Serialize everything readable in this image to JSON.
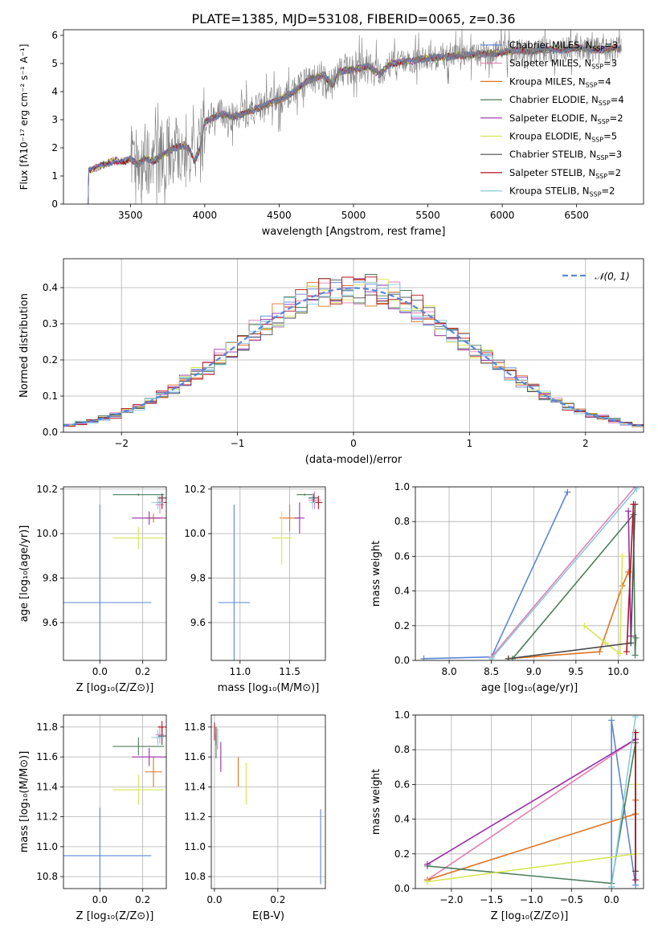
{
  "figure_title": "PLATE=1385, MJD=53108, FIBERID=0065, z=0.36",
  "colors": {
    "Chabrier MILES": "#5b86d6",
    "Salpeter MILES": "#e47fb2",
    "Kroupa MILES": "#e0731f",
    "Chabrier ELODIE": "#4d7d5b",
    "Salpeter ELODIE": "#9a2fa8",
    "Kroupa ELODIE": "#d8e653",
    "Chabrier STELIB": "#4a4a4a",
    "Salpeter STELIB": "#b3121f",
    "Kroupa STELIB": "#86ccdc",
    "data": "#808080",
    "normal": "#5b86d6"
  },
  "chart_data": [
    {
      "id": "spectrum",
      "type": "line",
      "xlabel": "wavelength [Angstrom, rest frame]",
      "ylabel": "Flux [fλ10⁻¹⁷ erg cm⁻² s⁻¹ A⁻¹]",
      "xlim": [
        3050,
        6950
      ],
      "ylim": [
        0,
        6.2
      ],
      "xticks": [
        3500,
        4000,
        4500,
        5000,
        5500,
        6000,
        6500
      ],
      "yticks": [
        0,
        1,
        2,
        3,
        4,
        5,
        6
      ],
      "legend_position": "top-right",
      "legend": [
        {
          "name": "Chabrier MILES",
          "nssp": "3"
        },
        {
          "name": "Salpeter MILES",
          "nssp": "3"
        },
        {
          "name": "Kroupa MILES",
          "nssp": "4"
        },
        {
          "name": "Chabrier ELODIE",
          "nssp": "4"
        },
        {
          "name": "Salpeter ELODIE",
          "nssp": "2"
        },
        {
          "name": "Kroupa ELODIE",
          "nssp": "5"
        },
        {
          "name": "Chabrier STELIB",
          "nssp": "3"
        },
        {
          "name": "Salpeter STELIB",
          "nssp": "2"
        },
        {
          "name": "Kroupa STELIB",
          "nssp": "2"
        }
      ],
      "model_points": [
        [
          3200,
          0
        ],
        [
          3220,
          1.2
        ],
        [
          3300,
          1.35
        ],
        [
          3400,
          1.55
        ],
        [
          3450,
          1.5
        ],
        [
          3500,
          1.6
        ],
        [
          3550,
          1.4
        ],
        [
          3600,
          1.65
        ],
        [
          3650,
          1.5
        ],
        [
          3700,
          1.7
        ],
        [
          3750,
          1.85
        ],
        [
          3800,
          2.0
        ],
        [
          3850,
          2.1
        ],
        [
          3900,
          1.95
        ],
        [
          3930,
          1.5
        ],
        [
          3970,
          2.0
        ],
        [
          4000,
          2.9
        ],
        [
          4100,
          3.2
        ],
        [
          4200,
          3.1
        ],
        [
          4300,
          3.3
        ],
        [
          4400,
          3.5
        ],
        [
          4500,
          3.7
        ],
        [
          4600,
          4.0
        ],
        [
          4700,
          4.4
        ],
        [
          4800,
          4.6
        ],
        [
          4860,
          4.2
        ],
        [
          4900,
          4.7
        ],
        [
          5000,
          4.8
        ],
        [
          5100,
          4.9
        ],
        [
          5175,
          4.6
        ],
        [
          5250,
          5.0
        ],
        [
          5400,
          5.1
        ],
        [
          5500,
          5.2
        ],
        [
          5600,
          5.2
        ],
        [
          5700,
          5.3
        ],
        [
          5800,
          5.3
        ],
        [
          5900,
          5.35
        ],
        [
          6000,
          5.4
        ],
        [
          6100,
          5.45
        ],
        [
          6200,
          5.45
        ],
        [
          6300,
          5.5
        ],
        [
          6400,
          5.5
        ],
        [
          6500,
          5.55
        ],
        [
          6600,
          5.5
        ],
        [
          6700,
          5.5
        ],
        [
          6800,
          5.55
        ]
      ],
      "data_range": [
        3500,
        6800
      ]
    },
    {
      "id": "residuals",
      "type": "line",
      "xlabel": "(data-model)/error",
      "ylabel": "Normed distribution",
      "xlim": [
        -2.5,
        2.5
      ],
      "ylim": [
        0,
        0.48
      ],
      "xticks": [
        -2,
        -1,
        0,
        1,
        2
      ],
      "yticks": [
        0.0,
        0.1,
        0.2,
        0.3,
        0.4
      ],
      "legend_position": "top-right",
      "legend": [
        "𝒩(0, 1)"
      ],
      "curve": "normal pdf, mean 0, sigma 1, dashed"
    },
    {
      "id": "age-vs-Z",
      "type": "scatter",
      "xlabel": "Z [log₁₀(Z/Z⊙)]",
      "ylabel": "age  [log₁₀(age/yr)]",
      "xlim": [
        -0.17,
        0.31
      ],
      "ylim": [
        9.43,
        10.21
      ],
      "xticks": [
        0.0,
        0.2
      ],
      "yticks": [
        9.6,
        9.8,
        10.0,
        10.2
      ],
      "points": [
        {
          "model": "Chabrier MILES",
          "x": 0.0,
          "xerr": 0.24,
          "y": 9.69,
          "yerr": 0.44
        },
        {
          "model": "Salpeter MILES",
          "x": 0.28,
          "xerr": 0.02,
          "y": 10.13,
          "yerr": 0.04
        },
        {
          "model": "Kroupa MILES",
          "x": 0.25,
          "xerr": 0.04,
          "y": 10.07,
          "yerr": 0.02
        },
        {
          "model": "Chabrier ELODIE",
          "x": 0.18,
          "xerr": 0.12,
          "y": 10.175,
          "yerr": 0.005
        },
        {
          "model": "Salpeter ELODIE",
          "x": 0.23,
          "xerr": 0.08,
          "y": 10.07,
          "yerr": 0.03
        },
        {
          "model": "Kroupa ELODIE",
          "x": 0.18,
          "xerr": 0.12,
          "y": 9.98,
          "yerr": 0.05
        },
        {
          "model": "Chabrier STELIB",
          "x": 0.29,
          "xerr": 0.02,
          "y": 10.16,
          "yerr": 0.02
        },
        {
          "model": "Salpeter STELIB",
          "x": 0.29,
          "xerr": 0.02,
          "y": 10.14,
          "yerr": 0.03
        },
        {
          "model": "Kroupa STELIB",
          "x": 0.27,
          "xerr": 0.03,
          "y": 10.14,
          "yerr": 0.03
        }
      ]
    },
    {
      "id": "age-vs-mass",
      "type": "scatter",
      "xlabel": "mass [log₁₀(M/M⊙)]",
      "ylabel": "",
      "xlim": [
        10.71,
        11.86
      ],
      "ylim": [
        9.43,
        10.21
      ],
      "xticks": [
        11.0,
        11.5
      ],
      "yticks": [
        9.6,
        9.8,
        10.0,
        10.2
      ],
      "points": [
        {
          "model": "Chabrier MILES",
          "x": 10.94,
          "xerr": 0.16,
          "y": 9.69,
          "yerr": 0.44
        },
        {
          "model": "Salpeter MILES",
          "x": 11.75,
          "xerr": 0.06,
          "y": 10.15,
          "yerr": 0.04
        },
        {
          "model": "Kroupa MILES",
          "x": 11.5,
          "xerr": 0.1,
          "y": 10.07,
          "yerr": 0.06
        },
        {
          "model": "Chabrier ELODIE",
          "x": 11.65,
          "xerr": 0.08,
          "y": 10.175,
          "yerr": 0.005
        },
        {
          "model": "Salpeter ELODIE",
          "x": 11.6,
          "xerr": 0.05,
          "y": 10.07,
          "yerr": 0.07
        },
        {
          "model": "Kroupa ELODIE",
          "x": 11.42,
          "xerr": 0.1,
          "y": 9.98,
          "yerr": 0.12
        },
        {
          "model": "Chabrier STELIB",
          "x": 11.74,
          "xerr": 0.05,
          "y": 10.16,
          "yerr": 0.02
        },
        {
          "model": "Salpeter STELIB",
          "x": 11.79,
          "xerr": 0.04,
          "y": 10.14,
          "yerr": 0.03
        },
        {
          "model": "Kroupa STELIB",
          "x": 11.73,
          "xerr": 0.03,
          "y": 10.14,
          "yerr": 0.03
        }
      ]
    },
    {
      "id": "mass-weight-vs-age",
      "type": "line",
      "xlabel": "age  [log₁₀(age/yr)]",
      "ylabel": "mass weight",
      "xlim": [
        7.6,
        10.3
      ],
      "ylim": [
        0,
        1
      ],
      "xticks": [
        8.0,
        8.5,
        9.0,
        9.5,
        10.0
      ],
      "yticks": [
        0.0,
        0.2,
        0.4,
        0.6,
        0.8,
        1.0
      ],
      "series": [
        {
          "model": "Chabrier MILES",
          "points": [
            [
              7.7,
              0.01
            ],
            [
              8.5,
              0.02
            ],
            [
              9.4,
              0.97
            ]
          ]
        },
        {
          "model": "Salpeter MILES",
          "points": [
            [
              8.5,
              0.02
            ],
            [
              10.2,
              1.0
            ]
          ]
        },
        {
          "model": "Kroupa MILES",
          "points": [
            [
              8.7,
              0.01
            ],
            [
              9.78,
              0.05
            ],
            [
              10.05,
              0.43
            ],
            [
              10.12,
              0.51
            ]
          ]
        },
        {
          "model": "Chabrier ELODIE",
          "points": [
            [
              8.75,
              0.01
            ],
            [
              10.18,
              0.84
            ],
            [
              10.2,
              0.03
            ],
            [
              10.21,
              0.13
            ]
          ]
        },
        {
          "model": "Salpeter ELODIE",
          "points": [
            [
              10.12,
              0.86
            ],
            [
              10.15,
              0.14
            ]
          ]
        },
        {
          "model": "Kroupa ELODIE",
          "points": [
            [
              9.6,
              0.2
            ],
            [
              9.85,
              0.1
            ],
            [
              10.02,
              0.04
            ],
            [
              10.05,
              0.6
            ]
          ]
        },
        {
          "model": "Chabrier STELIB",
          "points": [
            [
              8.7,
              0.01
            ],
            [
              10.15,
              0.1
            ],
            [
              10.2,
              0.9
            ]
          ]
        },
        {
          "model": "Salpeter STELIB",
          "points": [
            [
              10.1,
              0.05
            ],
            [
              10.18,
              0.9
            ]
          ]
        },
        {
          "model": "Kroupa STELIB",
          "points": [
            [
              8.5,
              0.01
            ],
            [
              10.22,
              0.99
            ]
          ]
        }
      ]
    },
    {
      "id": "mass-vs-Z",
      "type": "scatter",
      "xlabel": "Z [log₁₀(Z/Z⊙)]",
      "ylabel": "mass [log₁₀(M/M⊙)]",
      "xlim": [
        -0.17,
        0.31
      ],
      "ylim": [
        10.72,
        11.88
      ],
      "xticks": [
        0.0,
        0.2
      ],
      "yticks": [
        10.8,
        11.0,
        11.2,
        11.4,
        11.6,
        11.8
      ],
      "points": [
        {
          "model": "Chabrier MILES",
          "x": 0.0,
          "xerr": 0.24,
          "y": 10.94,
          "yerr": 0.32
        },
        {
          "model": "Salpeter MILES",
          "x": 0.28,
          "xerr": 0.02,
          "y": 11.75,
          "yerr": 0.06
        },
        {
          "model": "Kroupa MILES",
          "x": 0.25,
          "xerr": 0.04,
          "y": 11.5,
          "yerr": 0.1
        },
        {
          "model": "Chabrier ELODIE",
          "x": 0.18,
          "xerr": 0.12,
          "y": 11.67,
          "yerr": 0.06
        },
        {
          "model": "Salpeter ELODIE",
          "x": 0.23,
          "xerr": 0.08,
          "y": 11.6,
          "yerr": 0.06
        },
        {
          "model": "Kroupa ELODIE",
          "x": 0.18,
          "xerr": 0.12,
          "y": 11.38,
          "yerr": 0.1
        },
        {
          "model": "Chabrier STELIB",
          "x": 0.29,
          "xerr": 0.02,
          "y": 11.74,
          "yerr": 0.06
        },
        {
          "model": "Salpeter STELIB",
          "x": 0.29,
          "xerr": 0.02,
          "y": 11.8,
          "yerr": 0.04
        },
        {
          "model": "Kroupa STELIB",
          "x": 0.27,
          "xerr": 0.03,
          "y": 11.73,
          "yerr": 0.05
        }
      ]
    },
    {
      "id": "mass-vs-EBV",
      "type": "scatter",
      "xlabel": "E(B-V)",
      "ylabel": "",
      "xlim": [
        -0.01,
        0.35
      ],
      "ylim": [
        10.72,
        11.88
      ],
      "xticks": [
        0.0,
        0.2
      ],
      "yticks": [
        10.8,
        11.0,
        11.2,
        11.4,
        11.6,
        11.8
      ],
      "points": [
        {
          "model": "Chabrier MILES",
          "x": 0.335,
          "y": 11.0,
          "yerr": 0.25
        },
        {
          "model": "Salpeter MILES",
          "x": 0.01,
          "y": 11.72,
          "yerr": 0.07
        },
        {
          "model": "Kroupa MILES",
          "x": 0.075,
          "y": 11.5,
          "yerr": 0.1
        },
        {
          "model": "Chabrier ELODIE",
          "x": 0.005,
          "y": 11.67,
          "yerr": 0.08
        },
        {
          "model": "Salpeter ELODIE",
          "x": 0.02,
          "y": 11.6,
          "yerr": 0.1
        },
        {
          "model": "Kroupa ELODIE",
          "x": 0.1,
          "y": 11.42,
          "yerr": 0.14
        },
        {
          "model": "Chabrier STELIB",
          "x": 0.005,
          "y": 11.74,
          "yerr": 0.06
        },
        {
          "model": "Salpeter STELIB",
          "x": 0.0,
          "y": 11.77,
          "yerr": 0.06
        },
        {
          "model": "Kroupa STELIB",
          "x": 0.01,
          "y": 11.73,
          "yerr": 0.06
        }
      ]
    },
    {
      "id": "mass-weight-vs-Z",
      "type": "line",
      "xlabel": "Z [log₁₀(Z/Z⊙)]",
      "ylabel": "mass weight",
      "xlim": [
        -2.45,
        0.4
      ],
      "ylim": [
        0,
        1
      ],
      "xticks": [
        -2.0,
        -1.5,
        -1.0,
        -0.5,
        0.0
      ],
      "yticks": [
        0.0,
        0.2,
        0.4,
        0.6,
        0.8,
        1.0
      ],
      "series": [
        {
          "model": "Chabrier MILES",
          "points": [
            [
              0.0,
              0.01
            ],
            [
              0.0,
              0.97
            ],
            [
              0.3,
              0.02
            ]
          ]
        },
        {
          "model": "Salpeter MILES",
          "points": [
            [
              -2.3,
              0.05
            ],
            [
              0.3,
              0.86
            ]
          ]
        },
        {
          "model": "Kroupa MILES",
          "points": [
            [
              -2.3,
              0.05
            ],
            [
              0.3,
              0.43
            ],
            [
              0.3,
              0.51
            ]
          ]
        },
        {
          "model": "Chabrier ELODIE",
          "points": [
            [
              -2.3,
              0.13
            ],
            [
              0.0,
              0.03
            ],
            [
              0.3,
              0.84
            ]
          ]
        },
        {
          "model": "Salpeter ELODIE",
          "points": [
            [
              -2.3,
              0.14
            ],
            [
              0.3,
              0.86
            ]
          ]
        },
        {
          "model": "Kroupa ELODIE",
          "points": [
            [
              -2.3,
              0.04
            ],
            [
              0.3,
              0.2
            ],
            [
              0.3,
              0.6
            ]
          ]
        },
        {
          "model": "Chabrier STELIB",
          "points": [
            [
              0.3,
              0.1
            ],
            [
              0.3,
              0.9
            ]
          ]
        },
        {
          "model": "Salpeter STELIB",
          "points": [
            [
              0.3,
              0.05
            ],
            [
              0.3,
              0.9
            ]
          ]
        },
        {
          "model": "Kroupa STELIB",
          "points": [
            [
              0.0,
              0.01
            ],
            [
              0.3,
              0.99
            ]
          ]
        }
      ]
    }
  ]
}
